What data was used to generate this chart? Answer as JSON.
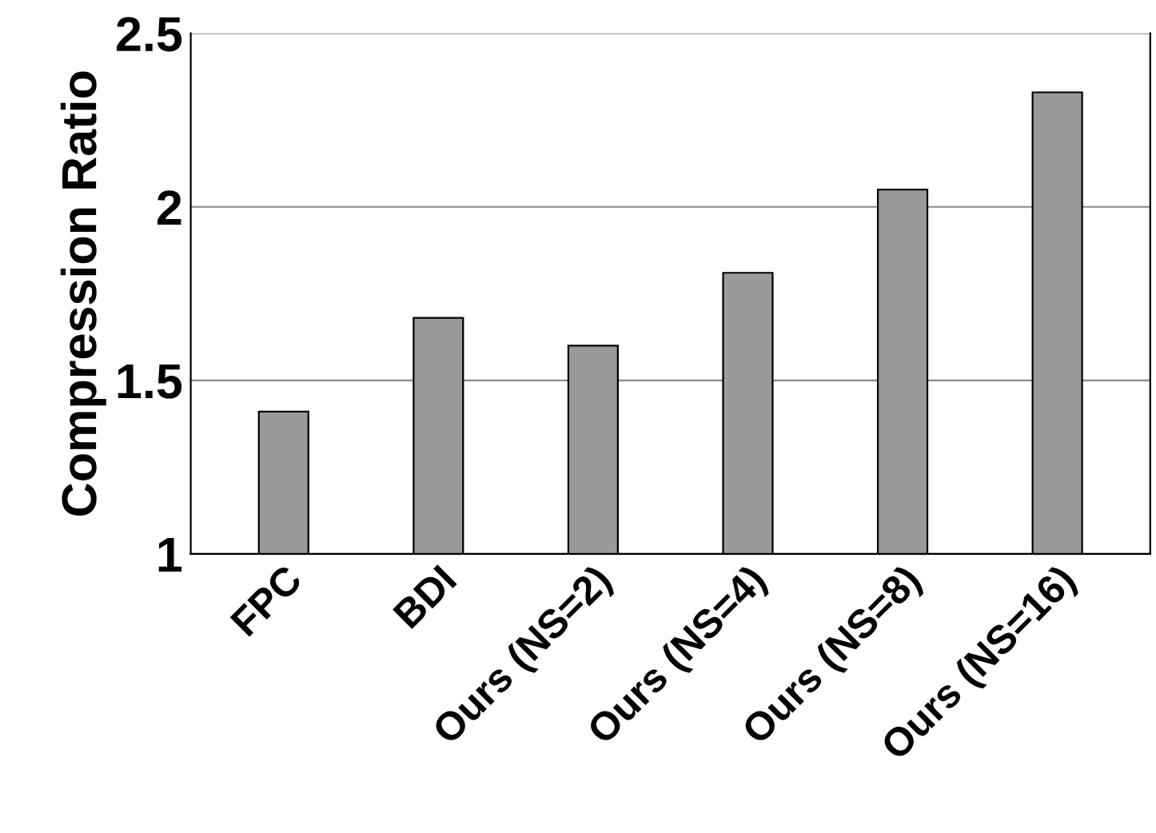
{
  "chart_data": {
    "type": "bar",
    "ylabel": "Compression Ratio",
    "categories": [
      "FPC",
      "BDI",
      "Ours (NS=2)",
      "Ours (NS=4)",
      "Ours (NS=8)",
      "Ours (NS=16)"
    ],
    "values": [
      1.41,
      1.68,
      1.6,
      1.81,
      2.05,
      2.33
    ],
    "color": "#9a9a9a",
    "ylim": [
      1,
      2.5
    ],
    "yticks": [
      1,
      1.5,
      2,
      2.5
    ],
    "grid": "y"
  }
}
